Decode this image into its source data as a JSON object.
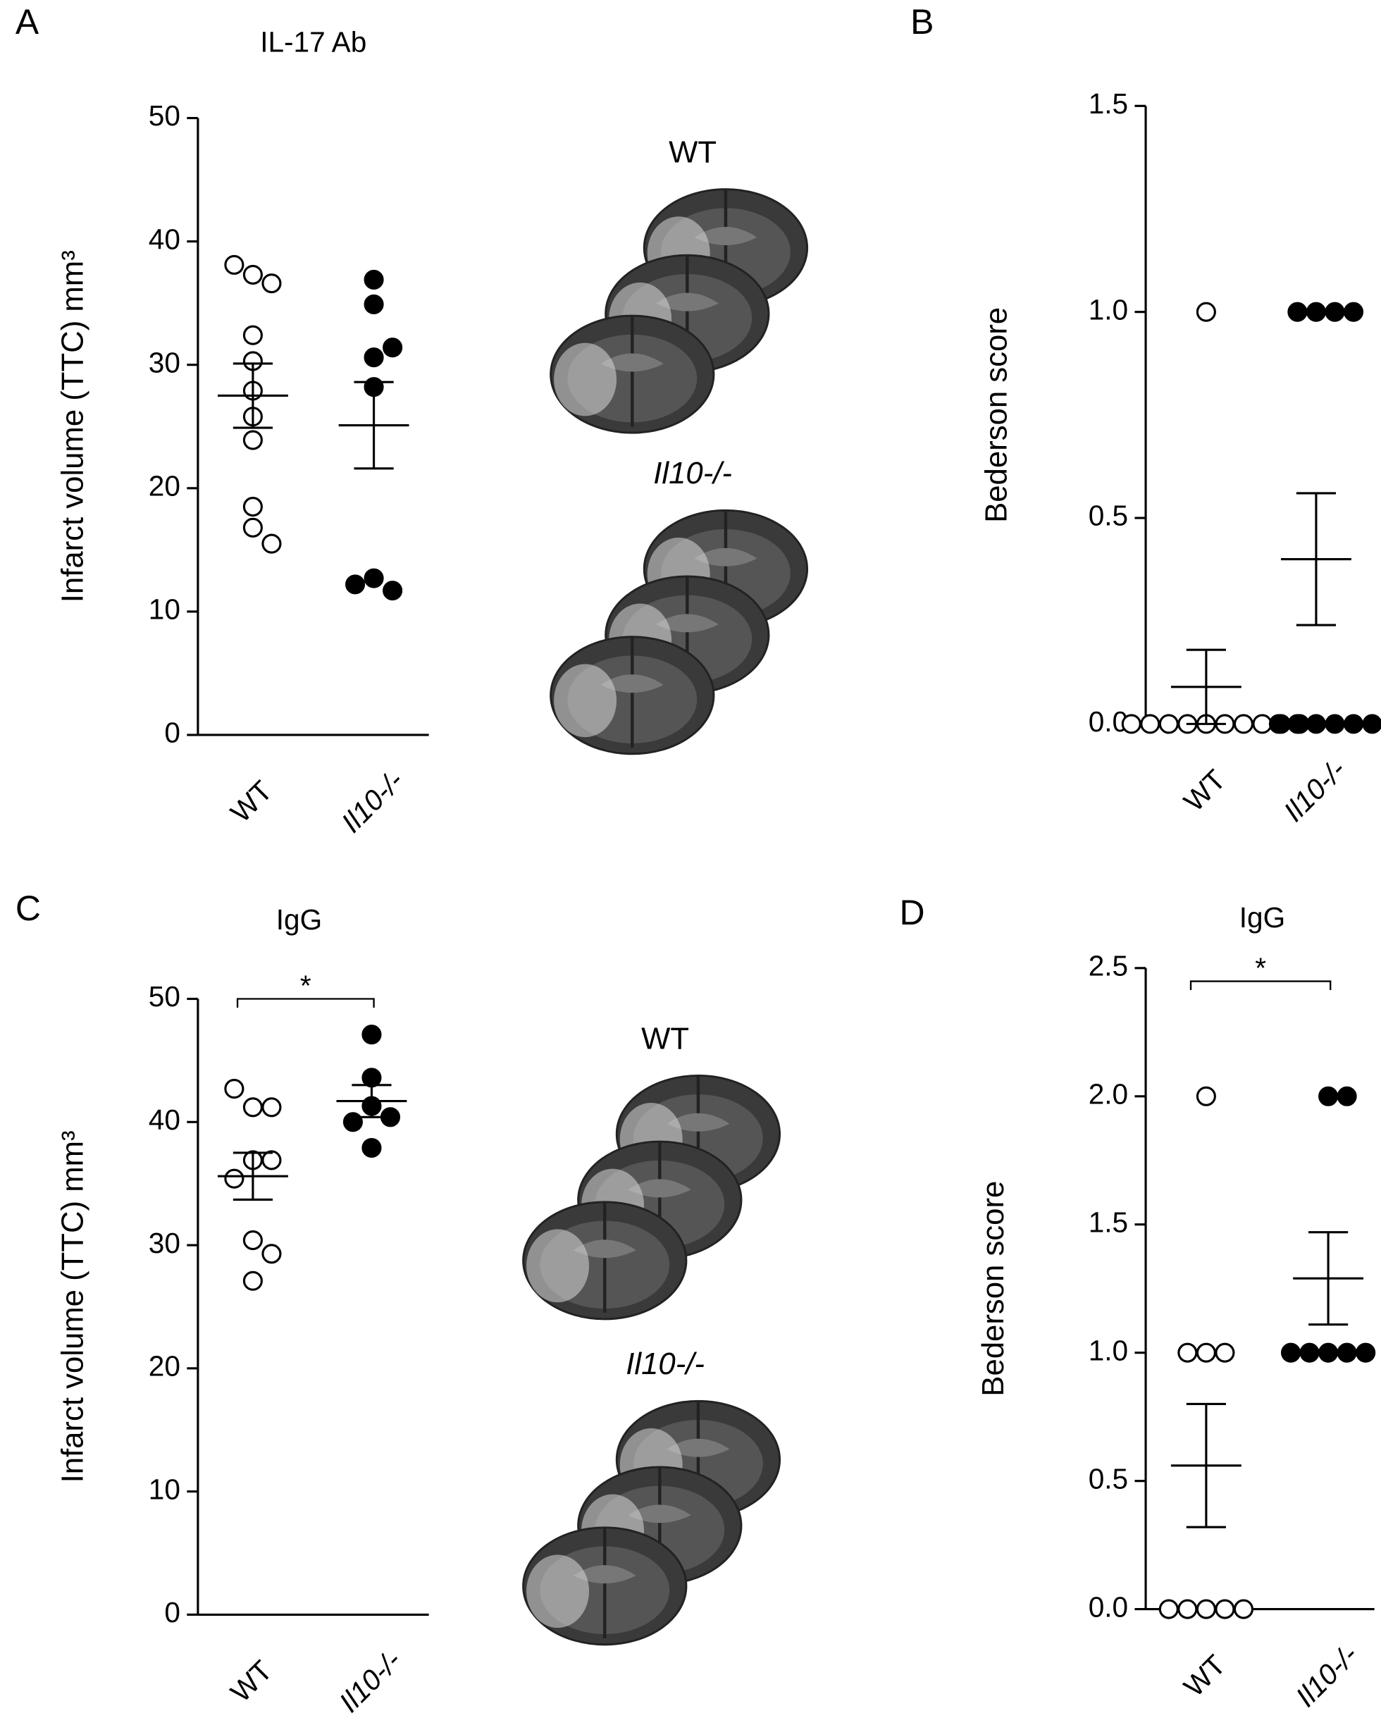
{
  "chart_data": [
    {
      "type": "dot",
      "panel": "A",
      "title": "IL-17 Ab",
      "y_label": "Infarct volume (TTC) mm³",
      "categories": [
        "WT",
        "Il10-/-"
      ],
      "values": [
        [
          37.3,
          36.6,
          38.1,
          32.4,
          30.3,
          27.9,
          25.8,
          23.9,
          18.5,
          16.8,
          15.5
        ],
        [
          36.9,
          34.9,
          30.6,
          31.4,
          28.2,
          12.7,
          11.7,
          12.2
        ]
      ],
      "means": [
        27.5,
        25.1
      ],
      "errors": [
        2.6,
        3.5
      ],
      "marker_fills": [
        "#ffffff",
        "#000000"
      ],
      "ylim": [
        0,
        50
      ],
      "yticks": [
        0,
        10,
        20,
        30,
        40,
        50
      ],
      "image_labels": [
        "WT",
        "Il10-/-"
      ]
    },
    {
      "type": "dot",
      "panel": "B",
      "y_label": "Bederson score",
      "categories": [
        "WT",
        "Il10-/-"
      ],
      "values": [
        [
          1,
          0,
          0,
          0,
          0,
          0,
          0,
          0,
          0,
          0,
          0
        ],
        [
          1,
          1,
          1,
          1,
          0,
          0,
          0,
          0,
          0,
          0
        ]
      ],
      "means": [
        0.09,
        0.4
      ],
      "errors": [
        0.09,
        0.16
      ],
      "marker_fills": [
        "#ffffff",
        "#000000"
      ],
      "ylim": [
        0,
        1.5
      ],
      "yticks": [
        {
          "value": 0,
          "label": "0.0"
        },
        {
          "value": 0.5,
          "label": "0.5"
        },
        {
          "value": 1,
          "label": "1.0"
        },
        {
          "value": 1.5,
          "label": "1.5"
        }
      ]
    },
    {
      "type": "dot",
      "panel": "C",
      "title": "IgG",
      "y_label": "Infarct volume (TTC) mm³",
      "categories": [
        "WT",
        "Il10-/-"
      ],
      "values": [
        [
          41.2,
          41.2,
          42.7,
          36.9,
          36.9,
          35.4,
          30.4,
          29.3,
          27.1
        ],
        [
          47.1,
          43.6,
          41.3,
          40.4,
          40.0,
          37.9
        ]
      ],
      "means": [
        35.6,
        41.7
      ],
      "errors": [
        1.9,
        1.3
      ],
      "marker_fills": [
        "#ffffff",
        "#000000"
      ],
      "ylim": [
        0,
        50
      ],
      "yticks": [
        0,
        10,
        20,
        30,
        40,
        50
      ],
      "significance": "*",
      "image_labels": [
        "WT",
        "Il10-/-"
      ]
    },
    {
      "type": "dot",
      "panel": "D",
      "title": "IgG",
      "y_label": "Bederson score",
      "categories": [
        "WT",
        "Il10-/-"
      ],
      "values": [
        [
          2,
          1,
          1,
          1,
          0,
          0,
          0,
          0,
          0
        ],
        [
          2,
          2,
          1,
          1,
          1,
          1,
          1
        ]
      ],
      "means": [
        0.56,
        1.29
      ],
      "errors": [
        0.24,
        0.18
      ],
      "marker_fills": [
        "#ffffff",
        "#000000"
      ],
      "ylim": [
        0,
        2.5
      ],
      "yticks": [
        {
          "value": 0,
          "label": "0.0"
        },
        {
          "value": 0.5,
          "label": "0.5"
        },
        {
          "value": 1,
          "label": "1.0"
        },
        {
          "value": 1.5,
          "label": "1.5"
        },
        {
          "value": 2,
          "label": "2.0"
        },
        {
          "value": 2.5,
          "label": "2.5"
        }
      ],
      "significance": "*"
    }
  ]
}
